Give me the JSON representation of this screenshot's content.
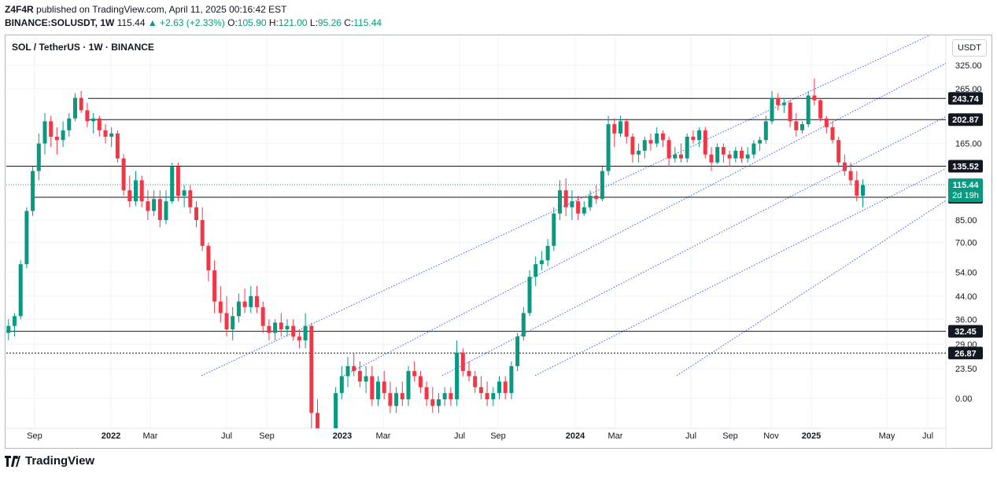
{
  "header": {
    "author": "Z4F4R",
    "published": "published on TradingView.com, April 11, 2025 00:16:42 EST",
    "symbol_line": "BINANCE:SOLUSDT, 1W",
    "last": "115.44",
    "change": "▲ +2.63 (+2.33%)",
    "o_label": "O:",
    "o_value": "105.90",
    "h_label": "H:",
    "h_value": "121.00",
    "l_label": "L:",
    "l_value": "95.26",
    "c_label": "C:",
    "c_value": "115.44"
  },
  "pair_title": "SOL / TetherUS · 1W · BINANCE",
  "unit_button": "USDT",
  "footer": {
    "brand": "TradingView"
  },
  "colors": {
    "up": "#089981",
    "down": "#f23645",
    "line": "#131722",
    "channel": "#2a2e39",
    "label_bg": "#131722"
  },
  "chart_data": {
    "type": "candlestick",
    "scale": "log",
    "y_ticks": [
      "325.00",
      "265.00",
      "165.00",
      "85.00",
      "70.00",
      "54.00",
      "44.00",
      "36.00",
      "29.00",
      "23.50",
      "0.00"
    ],
    "x_ticks": [
      "Sep",
      "2022",
      "Mar",
      "Jul",
      "Sep",
      "2023",
      "Mar",
      "Jul",
      "Sep",
      "2024",
      "Mar",
      "Jul",
      "Sep",
      "Nov",
      "2025",
      "May",
      "Jul"
    ],
    "horizontal_levels": [
      {
        "value": 243.74,
        "label": "243.74"
      },
      {
        "value": 202.87,
        "label": "202.87"
      },
      {
        "value": 135.52,
        "label": "135.52"
      },
      {
        "value": 103.64,
        "label": "103.64"
      },
      {
        "value": 32.45,
        "label": "32.45"
      },
      {
        "value": 26.87,
        "label": "26.87",
        "style": "dotted"
      }
    ],
    "current_price": {
      "value": 115.44,
      "label": "115.44",
      "countdown": "2d 19h"
    },
    "channel_lines": [
      {
        "from": [
          "2022-06",
          24
        ],
        "to": [
          "2025-05",
          400
        ]
      },
      {
        "from": [
          "2023-01",
          22
        ],
        "to": [
          "2025-05",
          330
        ]
      },
      {
        "from": [
          "2023-09",
          23
        ],
        "to": [
          "2025-05",
          200
        ]
      },
      {
        "from": [
          "2023-11",
          23
        ],
        "to": [
          "2025-05",
          135
        ]
      }
    ],
    "candles": [
      [
        1,
        32,
        36,
        30,
        34
      ],
      [
        2,
        34,
        38,
        31,
        37
      ],
      [
        3,
        37,
        60,
        36,
        58
      ],
      [
        4,
        58,
        95,
        56,
        92
      ],
      [
        5,
        92,
        135,
        88,
        130
      ],
      [
        6,
        130,
        180,
        120,
        165
      ],
      [
        7,
        165,
        215,
        150,
        200
      ],
      [
        8,
        200,
        210,
        160,
        175
      ],
      [
        9,
        175,
        190,
        150,
        170
      ],
      [
        10,
        170,
        200,
        160,
        185
      ],
      [
        11,
        185,
        215,
        175,
        205
      ],
      [
        12,
        205,
        255,
        200,
        245
      ],
      [
        13,
        245,
        260,
        215,
        220
      ],
      [
        14,
        220,
        235,
        190,
        200
      ],
      [
        15,
        200,
        215,
        180,
        205
      ],
      [
        16,
        205,
        210,
        175,
        185
      ],
      [
        17,
        185,
        195,
        165,
        175
      ],
      [
        18,
        175,
        190,
        160,
        180
      ],
      [
        19,
        180,
        185,
        140,
        145
      ],
      [
        20,
        145,
        150,
        105,
        110
      ],
      [
        21,
        110,
        125,
        95,
        100
      ],
      [
        22,
        100,
        130,
        96,
        120
      ],
      [
        23,
        120,
        125,
        95,
        100
      ],
      [
        24,
        100,
        110,
        85,
        92
      ],
      [
        25,
        92,
        110,
        88,
        102
      ],
      [
        26,
        102,
        110,
        80,
        85
      ],
      [
        27,
        85,
        110,
        82,
        100
      ],
      [
        28,
        100,
        140,
        98,
        135
      ],
      [
        29,
        135,
        140,
        100,
        105
      ],
      [
        30,
        105,
        115,
        95,
        110
      ],
      [
        31,
        110,
        115,
        90,
        95
      ],
      [
        32,
        95,
        100,
        80,
        85
      ],
      [
        33,
        85,
        95,
        65,
        68
      ],
      [
        34,
        68,
        70,
        50,
        55
      ],
      [
        35,
        55,
        60,
        38,
        42
      ],
      [
        36,
        42,
        48,
        35,
        38
      ],
      [
        37,
        38,
        44,
        31,
        33
      ],
      [
        38,
        33,
        40,
        30,
        37
      ],
      [
        39,
        37,
        45,
        35,
        42
      ],
      [
        40,
        42,
        47,
        38,
        40
      ],
      [
        41,
        40,
        48,
        38,
        44
      ],
      [
        42,
        44,
        48,
        38,
        40
      ],
      [
        43,
        40,
        42,
        32,
        34
      ],
      [
        44,
        34,
        36,
        30,
        32
      ],
      [
        45,
        32,
        36,
        30,
        35
      ],
      [
        46,
        35,
        38,
        31,
        33
      ],
      [
        47,
        33,
        36,
        31,
        34
      ],
      [
        48,
        34,
        36,
        30,
        31
      ],
      [
        49,
        31,
        33,
        28,
        30
      ],
      [
        50,
        30,
        38,
        28,
        34
      ],
      [
        51,
        34,
        35,
        14,
        16
      ],
      [
        52,
        16,
        18,
        9,
        11
      ],
      [
        53,
        11,
        13,
        8,
        10
      ],
      [
        54,
        10,
        14,
        9,
        13
      ],
      [
        55,
        13,
        20,
        12,
        19
      ],
      [
        56,
        19,
        24,
        18,
        22
      ],
      [
        57,
        22,
        26,
        20,
        24
      ],
      [
        58,
        24,
        27,
        22,
        23
      ],
      [
        59,
        23,
        25,
        20,
        21
      ],
      [
        60,
        21,
        24,
        19,
        22
      ],
      [
        61,
        22,
        24,
        17,
        18
      ],
      [
        62,
        18,
        22,
        17,
        21
      ],
      [
        63,
        21,
        23,
        18,
        19
      ],
      [
        64,
        19,
        21,
        16,
        17
      ],
      [
        65,
        17,
        20,
        16,
        19
      ],
      [
        66,
        19,
        21,
        17,
        18
      ],
      [
        67,
        18,
        24,
        17,
        23
      ],
      [
        68,
        23,
        25,
        21,
        22
      ],
      [
        69,
        22,
        23,
        19,
        20
      ],
      [
        70,
        20,
        21,
        17,
        18
      ],
      [
        71,
        18,
        20,
        16,
        17
      ],
      [
        72,
        17,
        19,
        16,
        18
      ],
      [
        73,
        18,
        20,
        17,
        19
      ],
      [
        74,
        19,
        20,
        17,
        18
      ],
      [
        75,
        18,
        30,
        17,
        27
      ],
      [
        76,
        27,
        28,
        22,
        23
      ],
      [
        77,
        23,
        25,
        21,
        22
      ],
      [
        78,
        22,
        23,
        19,
        20
      ],
      [
        79,
        20,
        22,
        18,
        19
      ],
      [
        80,
        19,
        21,
        17,
        18
      ],
      [
        81,
        18,
        20,
        17,
        19
      ],
      [
        82,
        19,
        22,
        18,
        21
      ],
      [
        83,
        21,
        22,
        18,
        19
      ],
      [
        84,
        19,
        25,
        18,
        24
      ],
      [
        85,
        24,
        32,
        23,
        31
      ],
      [
        86,
        31,
        40,
        30,
        38
      ],
      [
        87,
        38,
        55,
        37,
        52
      ],
      [
        88,
        52,
        62,
        48,
        58
      ],
      [
        89,
        58,
        65,
        55,
        60
      ],
      [
        90,
        60,
        72,
        57,
        68
      ],
      [
        91,
        68,
        95,
        65,
        90
      ],
      [
        92,
        90,
        120,
        85,
        110
      ],
      [
        93,
        110,
        122,
        88,
        95
      ],
      [
        94,
        95,
        110,
        85,
        100
      ],
      [
        95,
        100,
        105,
        85,
        90
      ],
      [
        96,
        90,
        100,
        88,
        95
      ],
      [
        97,
        95,
        110,
        92,
        105
      ],
      [
        98,
        105,
        115,
        98,
        102
      ],
      [
        99,
        102,
        135,
        100,
        130
      ],
      [
        100,
        130,
        210,
        125,
        195
      ],
      [
        101,
        195,
        205,
        160,
        180
      ],
      [
        102,
        180,
        210,
        175,
        200
      ],
      [
        103,
        200,
        205,
        165,
        175
      ],
      [
        104,
        175,
        180,
        140,
        150
      ],
      [
        105,
        150,
        165,
        140,
        155
      ],
      [
        106,
        155,
        175,
        145,
        170
      ],
      [
        107,
        170,
        180,
        155,
        165
      ],
      [
        108,
        165,
        190,
        160,
        180
      ],
      [
        109,
        180,
        185,
        160,
        170
      ],
      [
        110,
        170,
        175,
        135,
        145
      ],
      [
        111,
        145,
        160,
        140,
        150
      ],
      [
        112,
        150,
        165,
        140,
        145
      ],
      [
        113,
        145,
        180,
        140,
        175
      ],
      [
        114,
        175,
        185,
        165,
        170
      ],
      [
        115,
        170,
        190,
        160,
        185
      ],
      [
        116,
        185,
        190,
        145,
        150
      ],
      [
        117,
        150,
        160,
        130,
        140
      ],
      [
        118,
        140,
        165,
        138,
        160
      ],
      [
        119,
        160,
        165,
        140,
        150
      ],
      [
        120,
        150,
        155,
        135,
        145
      ],
      [
        121,
        145,
        160,
        140,
        155
      ],
      [
        122,
        155,
        160,
        140,
        145
      ],
      [
        123,
        145,
        160,
        140,
        150
      ],
      [
        124,
        150,
        170,
        145,
        165
      ],
      [
        125,
        165,
        175,
        155,
        170
      ],
      [
        126,
        170,
        210,
        165,
        200
      ],
      [
        127,
        200,
        260,
        195,
        245
      ],
      [
        128,
        245,
        255,
        220,
        230
      ],
      [
        129,
        230,
        245,
        215,
        235
      ],
      [
        130,
        235,
        240,
        190,
        200
      ],
      [
        131,
        200,
        215,
        175,
        185
      ],
      [
        132,
        185,
        200,
        180,
        195
      ],
      [
        133,
        195,
        260,
        190,
        250
      ],
      [
        134,
        250,
        290,
        230,
        240
      ],
      [
        135,
        240,
        245,
        200,
        205
      ],
      [
        136,
        205,
        210,
        180,
        190
      ],
      [
        137,
        190,
        200,
        165,
        170
      ],
      [
        138,
        170,
        175,
        135,
        140
      ],
      [
        139,
        140,
        150,
        125,
        130
      ],
      [
        140,
        130,
        140,
        115,
        120
      ],
      [
        141,
        120,
        130,
        100,
        105
      ],
      [
        142,
        105,
        121,
        95,
        115
      ]
    ]
  }
}
